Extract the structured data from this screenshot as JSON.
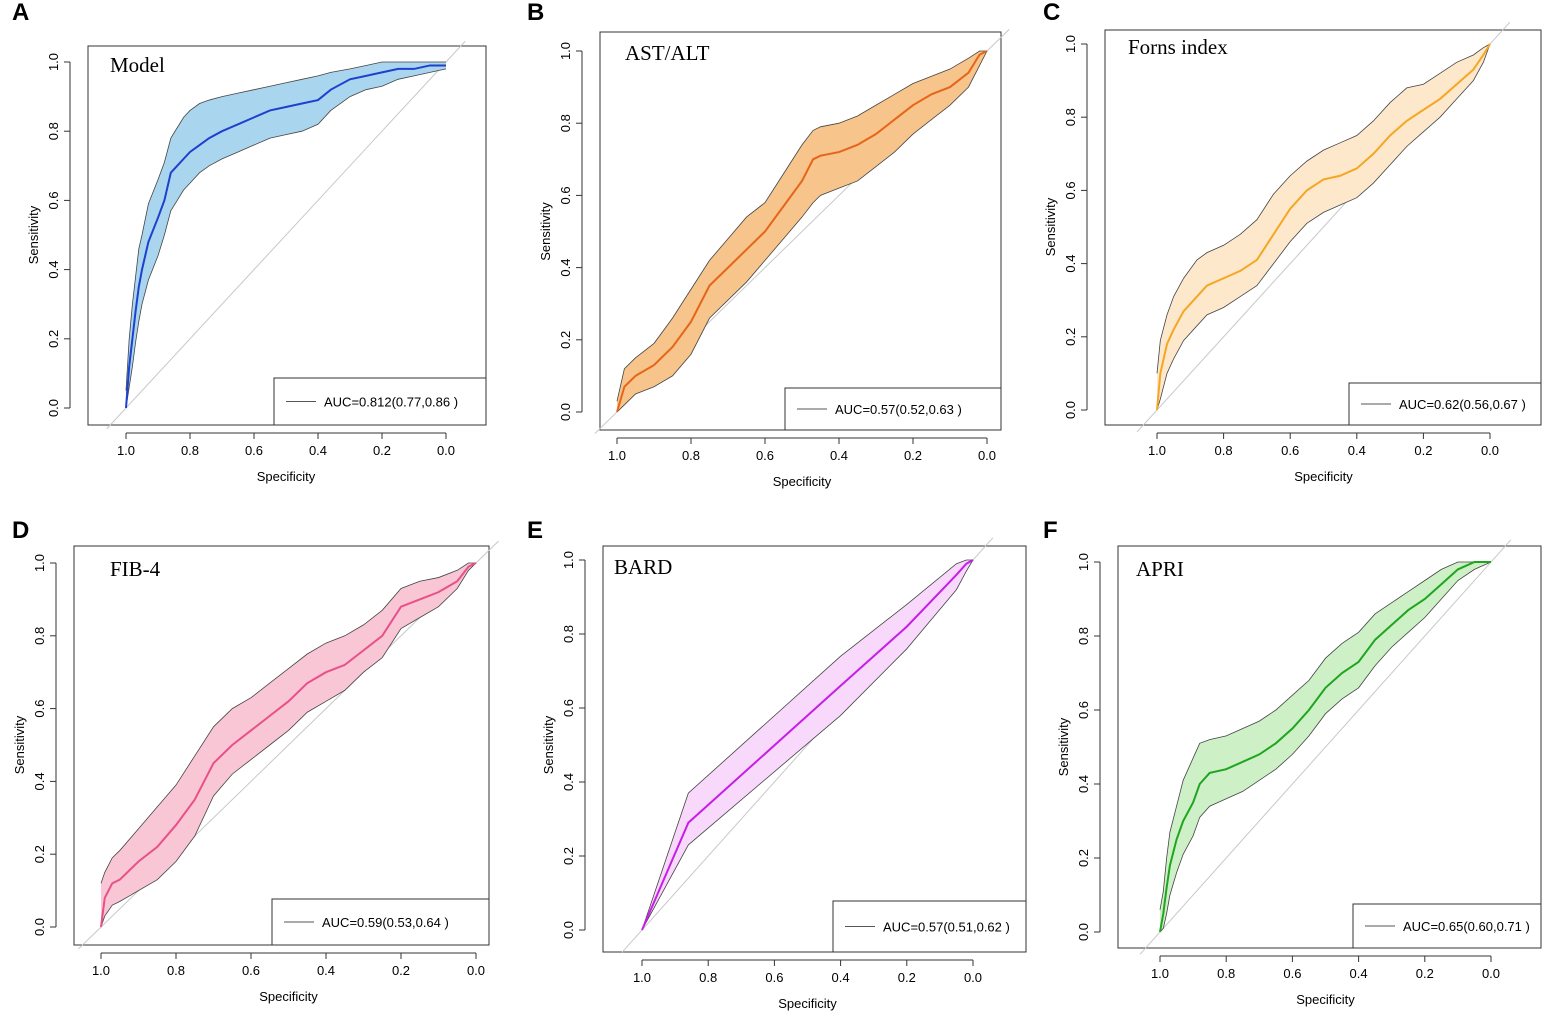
{
  "chart_data": [
    {
      "letter": "A",
      "title": "Model",
      "type": "line",
      "xlabel": "Specificity",
      "ylabel": "Sensitivity",
      "xlim": [
        1.0,
        0.0
      ],
      "ylim": [
        0,
        1
      ],
      "ticks": [
        "0.0",
        "0.2",
        "0.4",
        "0.6",
        "0.8",
        "1.0"
      ],
      "legend": "AUC=0.812(0.77,0.86 )",
      "color": "#1f3fcf",
      "fill": "#a9d6ee",
      "specificity": [
        1.0,
        0.99,
        0.98,
        0.97,
        0.96,
        0.95,
        0.93,
        0.9,
        0.88,
        0.86,
        0.84,
        0.82,
        0.8,
        0.77,
        0.74,
        0.7,
        0.65,
        0.6,
        0.55,
        0.5,
        0.45,
        0.4,
        0.36,
        0.3,
        0.25,
        0.2,
        0.15,
        0.1,
        0.05,
        0.0
      ],
      "sensitivity": [
        0.0,
        0.12,
        0.2,
        0.28,
        0.35,
        0.4,
        0.48,
        0.55,
        0.6,
        0.68,
        0.7,
        0.72,
        0.74,
        0.76,
        0.78,
        0.8,
        0.82,
        0.84,
        0.86,
        0.87,
        0.88,
        0.89,
        0.92,
        0.95,
        0.96,
        0.97,
        0.98,
        0.98,
        0.99,
        0.99
      ],
      "lower": [
        0.0,
        0.06,
        0.12,
        0.19,
        0.25,
        0.3,
        0.37,
        0.44,
        0.5,
        0.57,
        0.6,
        0.63,
        0.65,
        0.68,
        0.7,
        0.72,
        0.74,
        0.76,
        0.78,
        0.79,
        0.8,
        0.82,
        0.86,
        0.9,
        0.92,
        0.93,
        0.95,
        0.96,
        0.97,
        0.98
      ],
      "upper": [
        0.05,
        0.2,
        0.3,
        0.38,
        0.46,
        0.5,
        0.59,
        0.66,
        0.71,
        0.78,
        0.81,
        0.84,
        0.86,
        0.88,
        0.89,
        0.9,
        0.91,
        0.92,
        0.93,
        0.94,
        0.95,
        0.96,
        0.97,
        0.98,
        0.99,
        1.0,
        1.0,
        1.0,
        1.0,
        1.0
      ]
    },
    {
      "letter": "B",
      "title": "AST/ALT",
      "type": "line",
      "xlabel": "Specificity",
      "ylabel": "Sensitivity",
      "xlim": [
        1.0,
        0.0
      ],
      "ylim": [
        0,
        1
      ],
      "ticks": [
        "0.0",
        "0.2",
        "0.4",
        "0.6",
        "0.8",
        "1.0"
      ],
      "legend": "AUC=0.57(0.52,0.63 )",
      "color": "#e5661a",
      "fill": "#f7c48b",
      "specificity": [
        1.0,
        0.98,
        0.95,
        0.9,
        0.85,
        0.8,
        0.75,
        0.7,
        0.65,
        0.6,
        0.55,
        0.5,
        0.47,
        0.45,
        0.4,
        0.35,
        0.3,
        0.25,
        0.2,
        0.15,
        0.1,
        0.05,
        0.02,
        0.0
      ],
      "sensitivity": [
        0.0,
        0.07,
        0.1,
        0.13,
        0.18,
        0.25,
        0.35,
        0.4,
        0.45,
        0.5,
        0.57,
        0.64,
        0.7,
        0.71,
        0.72,
        0.74,
        0.77,
        0.81,
        0.85,
        0.88,
        0.9,
        0.94,
        0.99,
        1.0
      ],
      "lower": [
        0.0,
        0.02,
        0.05,
        0.07,
        0.1,
        0.16,
        0.26,
        0.31,
        0.36,
        0.42,
        0.48,
        0.54,
        0.58,
        0.6,
        0.62,
        0.64,
        0.68,
        0.72,
        0.77,
        0.81,
        0.85,
        0.9,
        0.96,
        1.0
      ],
      "upper": [
        0.03,
        0.12,
        0.15,
        0.19,
        0.26,
        0.34,
        0.42,
        0.48,
        0.54,
        0.58,
        0.66,
        0.74,
        0.78,
        0.79,
        0.8,
        0.82,
        0.85,
        0.88,
        0.91,
        0.93,
        0.95,
        0.98,
        1.0,
        1.0
      ]
    },
    {
      "letter": "C",
      "title": "Forns index",
      "type": "line",
      "xlabel": "Specificity",
      "ylabel": "Sensitivity",
      "xlim": [
        1.0,
        0.0
      ],
      "ylim": [
        0,
        1
      ],
      "ticks": [
        "0.0",
        "0.2",
        "0.4",
        "0.6",
        "0.8",
        "1.0"
      ],
      "legend": "AUC=0.62(0.56,0.67 )",
      "color": "#f5a623",
      "fill": "#fde8cc",
      "specificity": [
        1.0,
        0.99,
        0.97,
        0.95,
        0.92,
        0.88,
        0.85,
        0.8,
        0.75,
        0.7,
        0.65,
        0.6,
        0.55,
        0.5,
        0.45,
        0.4,
        0.35,
        0.3,
        0.25,
        0.2,
        0.15,
        0.1,
        0.05,
        0.02,
        0.0
      ],
      "sensitivity": [
        0.0,
        0.1,
        0.18,
        0.22,
        0.27,
        0.31,
        0.34,
        0.36,
        0.38,
        0.41,
        0.48,
        0.55,
        0.6,
        0.63,
        0.64,
        0.66,
        0.7,
        0.75,
        0.79,
        0.82,
        0.85,
        0.89,
        0.93,
        0.97,
        1.0
      ],
      "lower": [
        0.0,
        0.03,
        0.1,
        0.14,
        0.19,
        0.23,
        0.26,
        0.28,
        0.31,
        0.34,
        0.4,
        0.46,
        0.51,
        0.54,
        0.56,
        0.58,
        0.62,
        0.67,
        0.72,
        0.76,
        0.8,
        0.85,
        0.9,
        0.95,
        1.0
      ],
      "upper": [
        0.1,
        0.19,
        0.26,
        0.31,
        0.36,
        0.41,
        0.43,
        0.45,
        0.48,
        0.52,
        0.59,
        0.64,
        0.68,
        0.71,
        0.73,
        0.75,
        0.79,
        0.84,
        0.88,
        0.89,
        0.92,
        0.95,
        0.97,
        0.99,
        1.0
      ]
    },
    {
      "letter": "D",
      "title": "FIB-4",
      "type": "line",
      "xlabel": "Specificity",
      "ylabel": "Sensitivity",
      "xlim": [
        1.0,
        0.0
      ],
      "ylim": [
        0,
        1
      ],
      "ticks": [
        "0.0",
        "0.2",
        "0.4",
        "0.6",
        "0.8",
        "1.0"
      ],
      "legend": "AUC=0.59(0.53,0.64 )",
      "color": "#e8508a",
      "fill": "#f9c6d6",
      "specificity": [
        1.0,
        0.99,
        0.97,
        0.95,
        0.9,
        0.85,
        0.8,
        0.75,
        0.7,
        0.65,
        0.6,
        0.55,
        0.5,
        0.45,
        0.4,
        0.35,
        0.3,
        0.25,
        0.2,
        0.15,
        0.1,
        0.05,
        0.02,
        0.0
      ],
      "sensitivity": [
        0.0,
        0.08,
        0.12,
        0.13,
        0.18,
        0.22,
        0.28,
        0.35,
        0.45,
        0.5,
        0.54,
        0.58,
        0.62,
        0.67,
        0.7,
        0.72,
        0.76,
        0.8,
        0.88,
        0.9,
        0.92,
        0.95,
        0.99,
        1.0
      ],
      "lower": [
        0.0,
        0.03,
        0.06,
        0.07,
        0.1,
        0.13,
        0.18,
        0.25,
        0.36,
        0.42,
        0.46,
        0.5,
        0.54,
        0.59,
        0.62,
        0.65,
        0.7,
        0.74,
        0.82,
        0.85,
        0.88,
        0.93,
        0.98,
        1.0
      ],
      "upper": [
        0.12,
        0.15,
        0.19,
        0.21,
        0.27,
        0.33,
        0.39,
        0.47,
        0.55,
        0.6,
        0.63,
        0.67,
        0.71,
        0.75,
        0.78,
        0.8,
        0.83,
        0.87,
        0.93,
        0.95,
        0.96,
        0.98,
        1.0,
        1.0
      ]
    },
    {
      "letter": "E",
      "title": "BARD",
      "type": "line",
      "xlabel": "Specificity",
      "ylabel": "Sensitivity",
      "xlim": [
        1.0,
        0.0
      ],
      "ylim": [
        0,
        1
      ],
      "ticks": [
        "0.0",
        "0.2",
        "0.4",
        "0.6",
        "0.8",
        "1.0"
      ],
      "legend": "AUC=0.57(0.51,0.62 )",
      "color": "#c51fe6",
      "fill": "#f9d9fb",
      "specificity": [
        1.0,
        0.86,
        0.4,
        0.2,
        0.05,
        0.02,
        0.0
      ],
      "sensitivity": [
        0.0,
        0.29,
        0.66,
        0.82,
        0.96,
        0.99,
        1.0
      ],
      "lower": [
        0.0,
        0.23,
        0.58,
        0.76,
        0.92,
        0.97,
        1.0
      ],
      "upper": [
        0.0,
        0.37,
        0.74,
        0.88,
        0.99,
        1.0,
        1.0
      ]
    },
    {
      "letter": "F",
      "title": "APRI",
      "type": "line",
      "xlabel": "Specificity",
      "ylabel": "Sensitivity",
      "xlim": [
        1.0,
        0.0
      ],
      "ylim": [
        0,
        1
      ],
      "ticks": [
        "0.0",
        "0.2",
        "0.4",
        "0.6",
        "0.8",
        "1.0"
      ],
      "legend": "AUC=0.65(0.60,0.71 )",
      "color": "#1fa51f",
      "fill": "#cdf0c6",
      "specificity": [
        1.0,
        0.99,
        0.98,
        0.97,
        0.95,
        0.93,
        0.9,
        0.88,
        0.85,
        0.8,
        0.75,
        0.7,
        0.65,
        0.6,
        0.55,
        0.5,
        0.45,
        0.4,
        0.35,
        0.3,
        0.25,
        0.2,
        0.15,
        0.1,
        0.05,
        0.0
      ],
      "sensitivity": [
        0.0,
        0.05,
        0.12,
        0.18,
        0.25,
        0.3,
        0.35,
        0.4,
        0.43,
        0.44,
        0.46,
        0.48,
        0.51,
        0.55,
        0.6,
        0.66,
        0.7,
        0.73,
        0.79,
        0.83,
        0.87,
        0.9,
        0.94,
        0.98,
        1.0,
        1.0
      ],
      "lower": [
        0.0,
        0.01,
        0.05,
        0.1,
        0.16,
        0.21,
        0.26,
        0.31,
        0.34,
        0.36,
        0.38,
        0.41,
        0.44,
        0.48,
        0.53,
        0.59,
        0.63,
        0.66,
        0.72,
        0.77,
        0.81,
        0.85,
        0.9,
        0.95,
        0.98,
        1.0
      ],
      "upper": [
        0.06,
        0.11,
        0.2,
        0.27,
        0.34,
        0.41,
        0.47,
        0.51,
        0.52,
        0.53,
        0.55,
        0.57,
        0.6,
        0.64,
        0.68,
        0.74,
        0.78,
        0.81,
        0.86,
        0.89,
        0.92,
        0.95,
        0.98,
        1.0,
        1.0,
        1.0
      ]
    }
  ]
}
